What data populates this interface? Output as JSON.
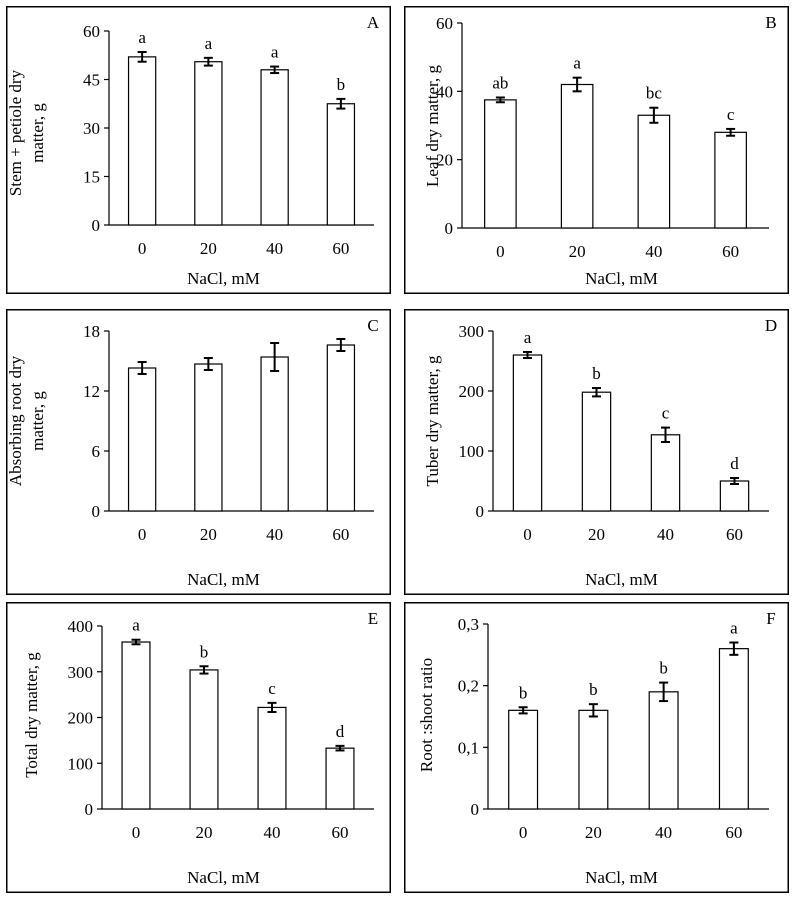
{
  "chart_data": [
    {
      "type": "bar",
      "panel_letter": "A",
      "xlabel": "NaCl, mM",
      "ylabel_lines": [
        "Stem + petiole dry",
        "matter, g"
      ],
      "categories": [
        "0",
        "20",
        "40",
        "60"
      ],
      "values": [
        52,
        50.5,
        48,
        37.5
      ],
      "errors": [
        1.5,
        1.2,
        1.0,
        1.5
      ],
      "letters": [
        "a",
        "a",
        "a",
        "b"
      ],
      "ylim": [
        0,
        60
      ],
      "yticks": [
        "0",
        "15",
        "30",
        "45",
        "60"
      ]
    },
    {
      "type": "bar",
      "panel_letter": "B",
      "xlabel": "NaCl, mM",
      "ylabel_lines": [
        "Leaf dry matter, g"
      ],
      "categories": [
        "0",
        "20",
        "40",
        "60"
      ],
      "values": [
        37.5,
        42,
        33,
        28
      ],
      "errors": [
        0.7,
        2.0,
        2.2,
        1.0
      ],
      "letters": [
        "ab",
        "a",
        "bc",
        "c"
      ],
      "ylim": [
        0,
        60
      ],
      "yticks": [
        "0",
        "20",
        "40",
        "60"
      ]
    },
    {
      "type": "bar",
      "panel_letter": "C",
      "xlabel": "NaCl, mM",
      "ylabel_lines": [
        "Absorbing root dry",
        "matter, g"
      ],
      "categories": [
        "0",
        "20",
        "40",
        "60"
      ],
      "values": [
        14.3,
        14.7,
        15.4,
        16.6
      ],
      "errors": [
        0.6,
        0.6,
        1.4,
        0.6
      ],
      "letters": [
        "",
        "",
        "",
        ""
      ],
      "ylim": [
        0,
        18
      ],
      "yticks": [
        "0",
        "6",
        "12",
        "18"
      ]
    },
    {
      "type": "bar",
      "panel_letter": "D",
      "xlabel": "NaCl, mM",
      "ylabel_lines": [
        "Tuber dry  matter, g"
      ],
      "categories": [
        "0",
        "20",
        "40",
        "60"
      ],
      "values": [
        260,
        198,
        127,
        50
      ],
      "errors": [
        5,
        7,
        12,
        5
      ],
      "letters": [
        "a",
        "b",
        "c",
        "d"
      ],
      "ylim": [
        0,
        300
      ],
      "yticks": [
        "0",
        "100",
        "200",
        "300"
      ]
    },
    {
      "type": "bar",
      "panel_letter": "E",
      "xlabel": "NaCl, mM",
      "ylabel_lines": [
        "Total dry matter, g"
      ],
      "categories": [
        "0",
        "20",
        "40",
        "60"
      ],
      "values": [
        365,
        304,
        222,
        133
      ],
      "errors": [
        5,
        8,
        10,
        5
      ],
      "letters": [
        "a",
        "b",
        "c",
        "d"
      ],
      "ylim": [
        0,
        400
      ],
      "yticks": [
        "0",
        "100",
        "200",
        "300",
        "400"
      ]
    },
    {
      "type": "bar",
      "panel_letter": "F",
      "xlabel": "NaCl, mM",
      "ylabel_lines": [
        "Root :shoot ratio"
      ],
      "categories": [
        "0",
        "20",
        "40",
        "60"
      ],
      "values": [
        0.16,
        0.16,
        0.19,
        0.26
      ],
      "errors": [
        0.005,
        0.01,
        0.015,
        0.01
      ],
      "letters": [
        "b",
        "b",
        "b",
        "a"
      ],
      "ylim": [
        0,
        0.3
      ],
      "yticks": [
        "0",
        "0,1",
        "0,2",
        "0,3"
      ]
    }
  ]
}
